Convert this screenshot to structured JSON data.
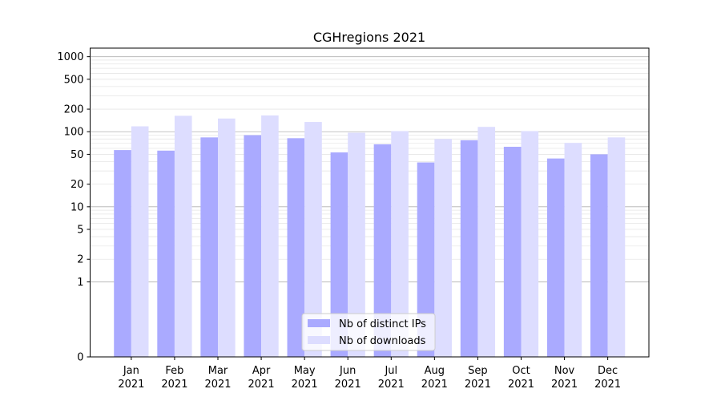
{
  "chart_data": {
    "type": "bar",
    "title": "CGHregions 2021",
    "xlabel": "",
    "ylabel": "",
    "y_scale": "symlog",
    "ylim": [
      0,
      1300
    ],
    "grid": "y-major-and-minor",
    "legend_placement": "lower-center",
    "categories": [
      [
        "Jan",
        "2021"
      ],
      [
        "Feb",
        "2021"
      ],
      [
        "Mar",
        "2021"
      ],
      [
        "Apr",
        "2021"
      ],
      [
        "May",
        "2021"
      ],
      [
        "Jun",
        "2021"
      ],
      [
        "Jul",
        "2021"
      ],
      [
        "Aug",
        "2021"
      ],
      [
        "Sep",
        "2021"
      ],
      [
        "Oct",
        "2021"
      ],
      [
        "Nov",
        "2021"
      ],
      [
        "Dec",
        "2021"
      ]
    ],
    "y_ticks": [
      0,
      1,
      2,
      5,
      10,
      20,
      50,
      100,
      200,
      500,
      1000
    ],
    "series": [
      {
        "name": "Nb of distinct IPs",
        "color": "#aaaaff",
        "values": [
          57,
          56,
          84,
          90,
          82,
          53,
          68,
          39,
          77,
          63,
          44,
          50
        ]
      },
      {
        "name": "Nb of downloads",
        "color": "#ddddff",
        "values": [
          118,
          163,
          150,
          165,
          135,
          97,
          102,
          80,
          116,
          102,
          71,
          84
        ]
      }
    ]
  }
}
